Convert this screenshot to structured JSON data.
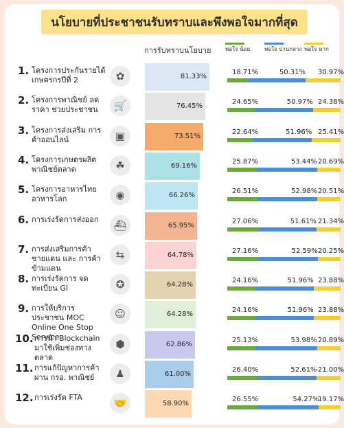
{
  "title": "นโยบายที่ประชาชนรับทราบและพึงพอใจมากที่สุด",
  "header": {
    "awareness_label": "การรับทราบนโยบาย"
  },
  "legend": [
    {
      "label": "พอใจ น้อย",
      "color": "#6aaa3a"
    },
    {
      "label": "พอใจ ปานกลาง",
      "color": "#4a8fd4"
    },
    {
      "label": "พอใจ มาก",
      "color": "#f5cf2c"
    }
  ],
  "chart_data": {
    "type": "bar",
    "title": "นโยบายที่ประชาชนรับทราบและพึงพอใจมากที่สุด",
    "items": [
      {
        "number": "1.",
        "label": "โครงการประกันรายได้ เกษตรกรปีที่ 2",
        "icon": "rice-plant-icon",
        "glyph": "✿",
        "bar_color": "#dbe7f4",
        "awareness": "81.33%",
        "awareness_value": 81.33,
        "low": "18.71%",
        "mid": "50.31%",
        "high": "30.97%",
        "low_v": 18.71,
        "mid_v": 50.31,
        "high_v": 30.97
      },
      {
        "number": "2.",
        "label": "โครงการพาณิชย์ ลดราคา ช่วยประชาชน",
        "icon": "shopping-cart-icon",
        "glyph": "🛒",
        "bar_color": "#e4e4e4",
        "awareness": "76.45%",
        "awareness_value": 76.45,
        "low": "24.65%",
        "mid": "50.97%",
        "high": "24.38%",
        "low_v": 24.65,
        "mid_v": 50.97,
        "high_v": 24.38
      },
      {
        "number": "3.",
        "label": "โครงการส่งเสริม การค้าออนไลน์",
        "icon": "online-shop-icon",
        "glyph": "▣",
        "bar_color": "#f6a96a",
        "awareness": "73.51%",
        "awareness_value": 73.51,
        "low": "22.64%",
        "mid": "51.96%",
        "high": "25.41%",
        "low_v": 22.64,
        "mid_v": 51.96,
        "high_v": 25.41
      },
      {
        "number": "4.",
        "label": "โครงการเกษตรผลิต พาณิชย์ตลาด",
        "icon": "farmers-icon",
        "glyph": "☘",
        "bar_color": "#aee0e8",
        "awareness": "69.16%",
        "awareness_value": 69.16,
        "low": "25.87%",
        "mid": "53.44%",
        "high": "20.69%",
        "low_v": 25.87,
        "mid_v": 53.44,
        "high_v": 20.69
      },
      {
        "number": "5.",
        "label": "โครงการอาหารไทย อาหารโลก",
        "icon": "thai-food-logo-icon",
        "glyph": "◉",
        "bar_color": "#bfe5f3",
        "awareness": "66.26%",
        "awareness_value": 66.26,
        "low": "26.51%",
        "mid": "52.98%",
        "high": "20.51%",
        "low_v": 26.51,
        "mid_v": 52.98,
        "high_v": 20.51
      },
      {
        "number": "6.",
        "label": "การเร่งรัดการส่งออก",
        "icon": "cargo-ship-icon",
        "glyph": "⛴",
        "bar_color": "#f3b591",
        "awareness": "65.95%",
        "awareness_value": 65.95,
        "low": "27.06%",
        "mid": "51.61%",
        "high": "21.34%",
        "low_v": 27.06,
        "mid_v": 51.61,
        "high_v": 21.34
      },
      {
        "number": "7.",
        "label": "การส่งเสริมการค้า ชายแดน และ การค้าข้ามแดน",
        "icon": "border-trade-icon",
        "glyph": "⇆",
        "bar_color": "#fbd3d3",
        "awareness": "64.78%",
        "awareness_value": 64.78,
        "low": "27.16%",
        "mid": "52.59%",
        "high": "20.25%",
        "low_v": 27.16,
        "mid_v": 52.59,
        "high_v": 20.25
      },
      {
        "number": "8.",
        "label": "การเร่งรัดการ จดทะเบียน GI",
        "icon": "gi-seal-icon",
        "glyph": "✪",
        "bar_color": "#e4d2b1",
        "awareness": "64.28%",
        "awareness_value": 64.28,
        "low": "24.16%",
        "mid": "51.96%",
        "high": "23.88%",
        "low_v": 24.16,
        "mid_v": 51.96,
        "high_v": 23.88
      },
      {
        "number": "9.",
        "label": "การให้บริการประชาชน MOC Online One Stop Service",
        "icon": "online-service-icon",
        "glyph": "☺",
        "bar_color": "#e0efd8",
        "awareness": "64.28%",
        "awareness_value": 64.28,
        "low": "24.16%",
        "mid": "51.96%",
        "high": "23.88%",
        "low_v": 24.16,
        "mid_v": 51.96,
        "high_v": 23.88
      },
      {
        "number": "10.",
        "label": "การนำ Blockchain มาใช้เพิ่มช่องทางตลาด",
        "icon": "blockchain-icon",
        "glyph": "⬢",
        "bar_color": "#c9c8ee",
        "awareness": "62.86%",
        "awareness_value": 62.86,
        "low": "25.13%",
        "mid": "53.98%",
        "high": "20.89%",
        "low_v": 25.13,
        "mid_v": 53.98,
        "high_v": 20.89
      },
      {
        "number": "11.",
        "label": "การแก้ปัญหาการค้า ผ่าน กรอ. พาณิชย์",
        "icon": "meeting-icon",
        "glyph": "♟",
        "bar_color": "#a9cdea",
        "awareness": "61.00%",
        "awareness_value": 61.0,
        "low": "26.40%",
        "mid": "52.61%",
        "high": "21.00%",
        "low_v": 26.4,
        "mid_v": 52.61,
        "high_v": 21.0
      },
      {
        "number": "12.",
        "label": "การเร่งรัด FTA",
        "icon": "handshake-icon",
        "glyph": "🤝",
        "bar_color": "#fbd8b3",
        "awareness": "58.90%",
        "awareness_value": 58.9,
        "low": "26.55%",
        "mid": "54.27%",
        "high": "19.17%",
        "low_v": 26.55,
        "mid_v": 54.27,
        "high_v": 19.17
      }
    ]
  }
}
